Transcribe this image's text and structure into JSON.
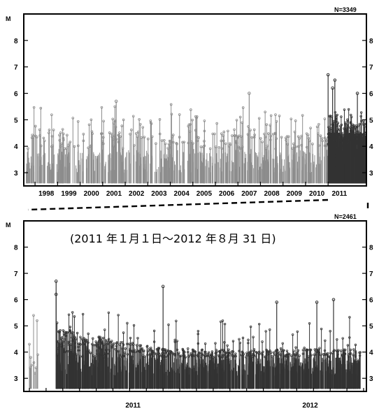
{
  "chart_data": [
    {
      "type": "stem",
      "ylabel": "M",
      "n_label": "N=3349",
      "yticks": [
        3,
        4,
        5,
        6,
        7,
        8
      ],
      "ylim": [
        2.5,
        9.0
      ],
      "xlim": [
        1997.5,
        2012.7
      ],
      "x_tick_labels": [
        "1998",
        "1999",
        "2000",
        "2001",
        "2002",
        "2003",
        "2004",
        "2005",
        "2006",
        "2007",
        "2008",
        "2009",
        "2010",
        "2011"
      ],
      "highlight_from": 2011.0,
      "colors": {
        "before": "#8c8c8c",
        "after": "#333333"
      },
      "notable_events": [
        {
          "x": 2011.0,
          "M": 6.7
        },
        {
          "x": 2011.3,
          "M": 6.5
        },
        {
          "x": 2011.2,
          "M": 6.2
        },
        {
          "x": 2012.3,
          "M": 6.0
        },
        {
          "x": 2007.5,
          "M": 6.0
        },
        {
          "x": 2001.6,
          "M": 5.7
        }
      ]
    },
    {
      "type": "stem",
      "ylabel": "M",
      "n_label": "N=2461",
      "period_text": "(2011 年１月１日～2012 年８月 31 日)",
      "yticks": [
        3,
        4,
        5,
        6,
        7,
        8
      ],
      "ylim": [
        2.5,
        9.0
      ],
      "x_tick_labels": [
        "2011",
        "2012"
      ],
      "colors": {
        "before": "#8c8c8c",
        "after": "#333333"
      },
      "notable_events": [
        {
          "x": 0.08,
          "M": 6.7
        },
        {
          "x": 0.08,
          "M": 6.2
        },
        {
          "x": 0.4,
          "M": 6.5
        },
        {
          "x": 0.74,
          "M": 5.9
        },
        {
          "x": 0.91,
          "M": 6.0
        },
        {
          "x": 0.86,
          "M": 5.9
        }
      ]
    }
  ]
}
